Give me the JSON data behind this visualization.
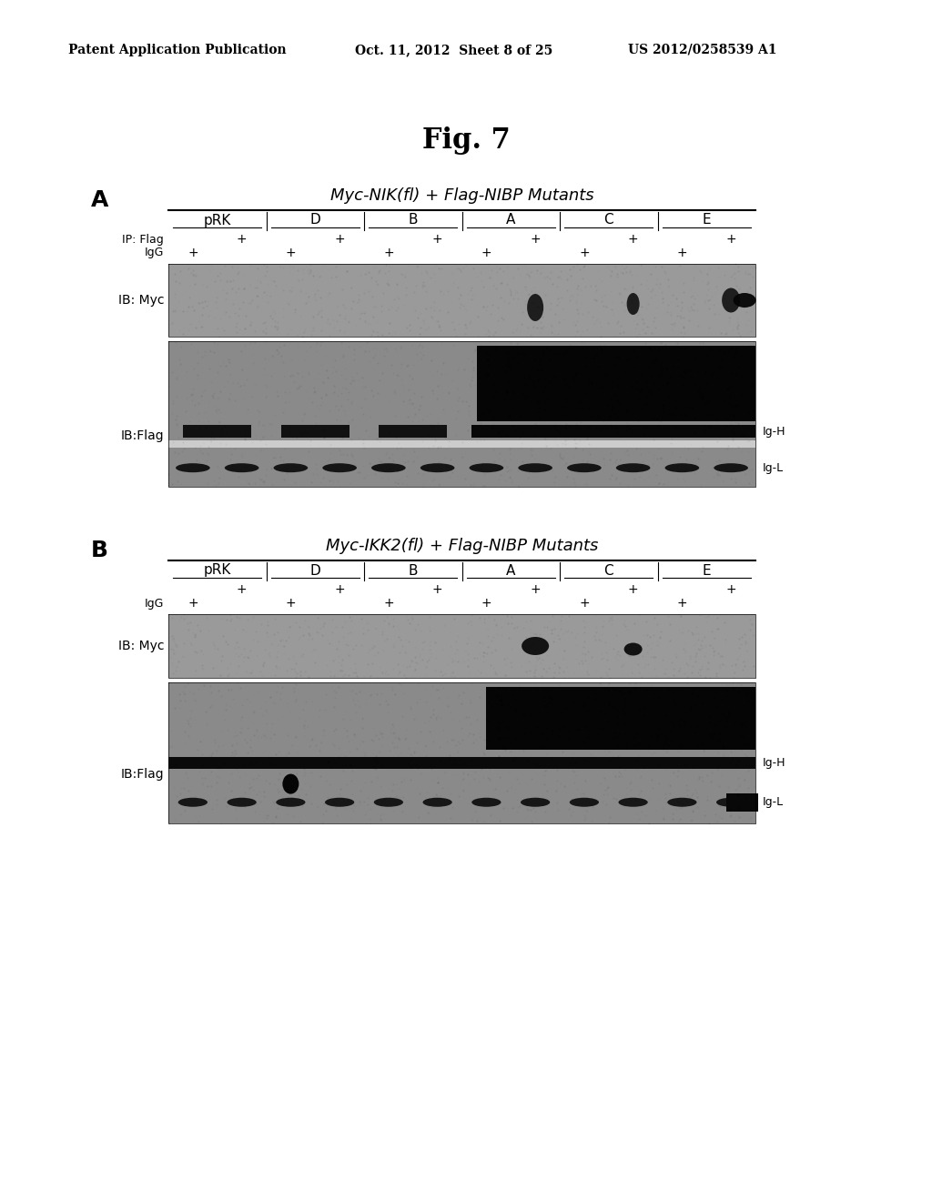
{
  "page_title_left": "Patent Application Publication",
  "page_title_mid": "Oct. 11, 2012  Sheet 8 of 25",
  "page_title_right": "US 2012/0258539 A1",
  "fig_title": "Fig. 7",
  "panel_A_title": "Myc-NIK(fl) + Flag-NIBP Mutants",
  "panel_B_title": "Myc-IKK2(fl) + Flag-NIBP Mutants",
  "columns": [
    "pRK",
    "D",
    "B",
    "A",
    "C",
    "E"
  ],
  "panel_A_label": "A",
  "panel_B_label": "B",
  "ip_flag_label": "IP: Flag",
  "igg_label": "IgG",
  "ib_myc_label": "IB: Myc",
  "ib_flag_label": "IB:Flag",
  "ig_h_label": "Ig-H",
  "ig_l_label": "Ig-L",
  "bg_color": "#ffffff",
  "blot_bg_color": "#b0b0b0",
  "blot_dark_color": "#000000"
}
